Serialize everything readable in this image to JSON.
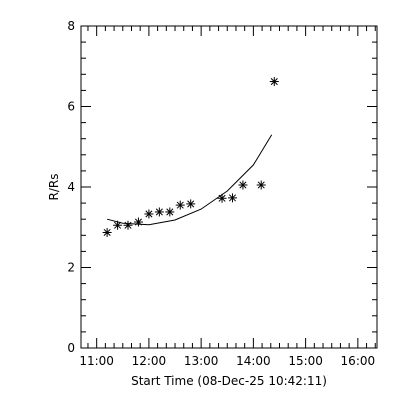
{
  "chart_data": {
    "type": "scatter",
    "title": "",
    "xlabel": "Start Time (08-Dec-25 10:42:11)",
    "ylabel": "R/Rs",
    "xlim": [
      "10:42",
      "16:22"
    ],
    "ylim": [
      0,
      8
    ],
    "x_ticks": [
      "11:00",
      "12:00",
      "13:00",
      "14:00",
      "15:00",
      "16:00"
    ],
    "y_ticks": [
      "0",
      "2",
      "4",
      "6",
      "8"
    ],
    "grid": false,
    "legend": "none",
    "marker": "asterisk",
    "color": "#000000",
    "series": [
      {
        "marker": "asterisk",
        "points": [
          {
            "x": "11:12",
            "y": 2.87
          },
          {
            "x": "11:24",
            "y": 3.05
          },
          {
            "x": "11:36",
            "y": 3.05
          },
          {
            "x": "11:48",
            "y": 3.13
          },
          {
            "x": "12:00",
            "y": 3.33
          },
          {
            "x": "12:12",
            "y": 3.38
          },
          {
            "x": "12:24",
            "y": 3.38
          },
          {
            "x": "12:36",
            "y": 3.55
          },
          {
            "x": "12:48",
            "y": 3.58
          },
          {
            "x": "13:24",
            "y": 3.72
          },
          {
            "x": "13:36",
            "y": 3.73
          },
          {
            "x": "13:48",
            "y": 4.05
          },
          {
            "x": "14:09",
            "y": 4.05
          },
          {
            "x": "14:24",
            "y": 6.62
          }
        ]
      },
      {
        "style": "line",
        "points": [
          {
            "x": "11:12",
            "y": 3.2
          },
          {
            "x": "11:30",
            "y": 3.1
          },
          {
            "x": "12:00",
            "y": 3.06
          },
          {
            "x": "12:30",
            "y": 3.18
          },
          {
            "x": "13:00",
            "y": 3.45
          },
          {
            "x": "13:30",
            "y": 3.9
          },
          {
            "x": "14:00",
            "y": 4.55
          },
          {
            "x": "14:21",
            "y": 5.3
          }
        ]
      }
    ]
  }
}
